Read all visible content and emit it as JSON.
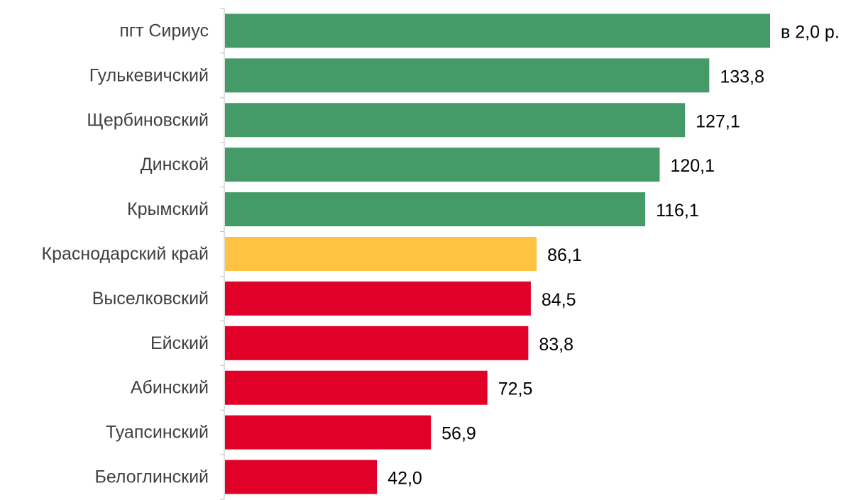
{
  "chart_data": {
    "type": "bar",
    "orientation": "horizontal",
    "categories": [
      "пгт Сириус",
      "Гулькевичский",
      "Щербиновский",
      "Динской",
      "Крымский",
      "Краснодарский край",
      "Выселковский",
      "Ейский",
      "Абинский",
      "Туапсинский",
      "Белоглинский"
    ],
    "values": [
      150.6,
      133.8,
      127.1,
      120.1,
      116.1,
      86.1,
      84.5,
      83.8,
      72.5,
      56.9,
      42.0
    ],
    "data_labels": [
      "в 2,0 р.",
      "133,8",
      "127,1",
      "120,1",
      "116,1",
      "86,1",
      "84,5",
      "83,8",
      "72,5",
      "56,9",
      "42,0"
    ],
    "colors": [
      "#459B68",
      "#459B68",
      "#459B68",
      "#459B68",
      "#459B68",
      "#FEC340",
      "#E10027",
      "#E10027",
      "#E10027",
      "#E10027",
      "#E10027"
    ],
    "title": "",
    "xlabel": "",
    "ylabel": "",
    "xlim": [
      0,
      150.6
    ],
    "grid": false,
    "legend": "none"
  }
}
